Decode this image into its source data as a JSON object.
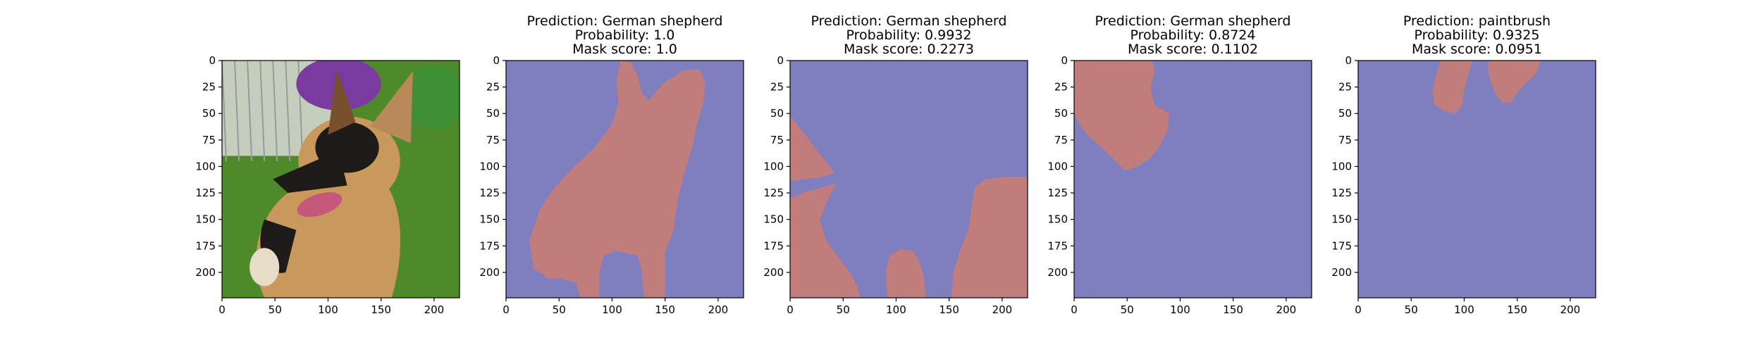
{
  "colors": {
    "mask_foreground": "#c17c7c",
    "mask_background": "#7f7fbf",
    "grass": "#4f8a2a",
    "fur_tan": "#c9995b",
    "fur_black": "#1d1a17",
    "purple_toy": "#7a3aa0",
    "fence": "#9a9a9a"
  },
  "chart_data": [
    {
      "type": "image",
      "panel": "input-photo",
      "subject": "German shepherd puppy on grass",
      "title_lines": [],
      "xlim": [
        0,
        224
      ],
      "ylim": [
        224,
        0
      ],
      "xticks": [
        0,
        50,
        100,
        150,
        200
      ],
      "yticks": [
        0,
        25,
        50,
        75,
        100,
        125,
        150,
        175,
        200
      ]
    },
    {
      "type": "heatmap",
      "panel": "mask-1",
      "title_lines": [
        "Prediction: German shepherd",
        "Probability: 1.0",
        "Mask score: 1.0"
      ],
      "xlim": [
        0,
        224
      ],
      "ylim": [
        224,
        0
      ],
      "xticks": [
        0,
        50,
        100,
        150,
        200
      ],
      "yticks": [
        0,
        25,
        50,
        75,
        100,
        125,
        150,
        175,
        200
      ],
      "regions": [
        [
          [
            108,
            0
          ],
          [
            118,
            2
          ],
          [
            124,
            14
          ],
          [
            128,
            30
          ],
          [
            134,
            38
          ],
          [
            148,
            22
          ],
          [
            166,
            10
          ],
          [
            182,
            8
          ],
          [
            188,
            20
          ],
          [
            186,
            40
          ],
          [
            180,
            60
          ],
          [
            176,
            80
          ],
          [
            170,
            100
          ],
          [
            162,
            130
          ],
          [
            158,
            160
          ],
          [
            150,
            180
          ],
          [
            150,
            200
          ],
          [
            150,
            224
          ],
          [
            130,
            224
          ],
          [
            128,
            200
          ],
          [
            124,
            184
          ],
          [
            104,
            180
          ],
          [
            92,
            184
          ],
          [
            88,
            200
          ],
          [
            88,
            224
          ],
          [
            70,
            224
          ],
          [
            66,
            210
          ],
          [
            52,
            206
          ],
          [
            40,
            206
          ],
          [
            26,
            196
          ],
          [
            22,
            170
          ],
          [
            32,
            140
          ],
          [
            46,
            120
          ],
          [
            62,
            102
          ],
          [
            82,
            84
          ],
          [
            100,
            60
          ],
          [
            106,
            40
          ],
          [
            104,
            20
          ]
        ]
      ]
    },
    {
      "type": "heatmap",
      "panel": "mask-2",
      "title_lines": [
        "Prediction: German shepherd",
        "Probability: 0.9932",
        "Mask score: 0.2273"
      ],
      "xlim": [
        0,
        224
      ],
      "ylim": [
        224,
        0
      ],
      "xticks": [
        0,
        50,
        100,
        150,
        200
      ],
      "yticks": [
        0,
        25,
        50,
        75,
        100,
        125,
        150,
        175,
        200
      ],
      "regions": [
        [
          [
            0,
            52
          ],
          [
            14,
            70
          ],
          [
            28,
            88
          ],
          [
            42,
            106
          ],
          [
            30,
            110
          ],
          [
            14,
            112
          ],
          [
            0,
            114
          ]
        ],
        [
          [
            0,
            130
          ],
          [
            14,
            124
          ],
          [
            30,
            120
          ],
          [
            44,
            116
          ],
          [
            36,
            130
          ],
          [
            28,
            150
          ],
          [
            34,
            170
          ],
          [
            44,
            184
          ],
          [
            56,
            200
          ],
          [
            64,
            214
          ],
          [
            66,
            224
          ],
          [
            0,
            224
          ]
        ],
        [
          [
            92,
            224
          ],
          [
            90,
            200
          ],
          [
            94,
            184
          ],
          [
            104,
            178
          ],
          [
            116,
            180
          ],
          [
            122,
            190
          ],
          [
            126,
            204
          ],
          [
            128,
            224
          ]
        ],
        [
          [
            152,
            224
          ],
          [
            154,
            200
          ],
          [
            160,
            180
          ],
          [
            168,
            160
          ],
          [
            174,
            120
          ],
          [
            184,
            112
          ],
          [
            200,
            110
          ],
          [
            214,
            110
          ],
          [
            224,
            110
          ],
          [
            224,
            224
          ]
        ]
      ]
    },
    {
      "type": "heatmap",
      "panel": "mask-3",
      "title_lines": [
        "Prediction: German shepherd",
        "Probability: 0.8724",
        "Mask score: 0.1102"
      ],
      "xlim": [
        0,
        224
      ],
      "ylim": [
        224,
        0
      ],
      "xticks": [
        0,
        50,
        100,
        150,
        200
      ],
      "yticks": [
        0,
        25,
        50,
        75,
        100,
        125,
        150,
        175,
        200
      ],
      "regions": [
        [
          [
            0,
            0
          ],
          [
            74,
            0
          ],
          [
            76,
            10
          ],
          [
            72,
            26
          ],
          [
            76,
            42
          ],
          [
            90,
            50
          ],
          [
            88,
            66
          ],
          [
            80,
            82
          ],
          [
            72,
            92
          ],
          [
            60,
            100
          ],
          [
            48,
            104
          ],
          [
            38,
            94
          ],
          [
            26,
            82
          ],
          [
            12,
            70
          ],
          [
            4,
            58
          ],
          [
            0,
            50
          ]
        ]
      ]
    },
    {
      "type": "heatmap",
      "panel": "mask-4",
      "title_lines": [
        "Prediction: paintbrush",
        "Probability: 0.9325",
        "Mask score: 0.0951"
      ],
      "xlim": [
        0,
        224
      ],
      "ylim": [
        224,
        0
      ],
      "xticks": [
        0,
        50,
        100,
        150,
        200
      ],
      "yticks": [
        0,
        25,
        50,
        75,
        100,
        125,
        150,
        175,
        200
      ],
      "regions": [
        [
          [
            78,
            0
          ],
          [
            108,
            0
          ],
          [
            104,
            12
          ],
          [
            100,
            28
          ],
          [
            98,
            42
          ],
          [
            92,
            50
          ],
          [
            82,
            48
          ],
          [
            72,
            42
          ],
          [
            70,
            28
          ],
          [
            74,
            12
          ]
        ],
        [
          [
            124,
            0
          ],
          [
            172,
            0
          ],
          [
            168,
            12
          ],
          [
            160,
            20
          ],
          [
            150,
            30
          ],
          [
            144,
            40
          ],
          [
            136,
            40
          ],
          [
            130,
            32
          ],
          [
            124,
            18
          ],
          [
            122,
            6
          ]
        ]
      ]
    }
  ]
}
